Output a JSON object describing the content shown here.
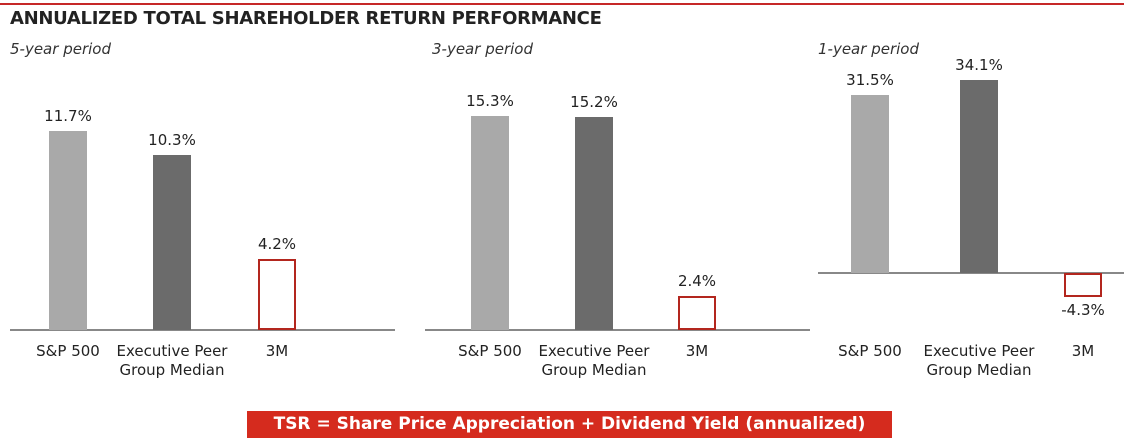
{
  "title": "ANNUALIZED TOTAL SHAREHOLDER RETURN PERFORMANCE",
  "note": "TSR = Share Price Appreciation + Dividend Yield (annualized)",
  "chart_data": [
    {
      "type": "bar",
      "subtitle": "5-year period",
      "categories": [
        "S&P 500",
        "Executive Peer Group Median",
        "3M"
      ],
      "values": [
        11.7,
        10.3,
        4.2
      ],
      "value_labels": [
        "11.7%",
        "10.3%",
        "4.2%"
      ],
      "colors": [
        "#a9a9a9",
        "#6b6b6b",
        "#ffffff"
      ],
      "edge_colors": [
        "#a9a9a9",
        "#6b6b6b",
        "#b3261e"
      ]
    },
    {
      "type": "bar",
      "subtitle": "3-year period",
      "categories": [
        "S&P 500",
        "Executive Peer Group Median",
        "3M"
      ],
      "values": [
        15.3,
        15.2,
        2.4
      ],
      "value_labels": [
        "15.3%",
        "15.2%",
        "2.4%"
      ],
      "colors": [
        "#a9a9a9",
        "#6b6b6b",
        "#ffffff"
      ],
      "edge_colors": [
        "#a9a9a9",
        "#6b6b6b",
        "#b3261e"
      ]
    },
    {
      "type": "bar",
      "subtitle": "1-year period",
      "categories": [
        "S&P 500",
        "Executive Peer Group Median",
        "3M"
      ],
      "values": [
        31.5,
        34.1,
        -4.3
      ],
      "value_labels": [
        "31.5%",
        "34.1%",
        "-4.3%"
      ],
      "colors": [
        "#a9a9a9",
        "#6b6b6b",
        "#ffffff"
      ],
      "edge_colors": [
        "#a9a9a9",
        "#6b6b6b",
        "#b3261e"
      ]
    }
  ]
}
